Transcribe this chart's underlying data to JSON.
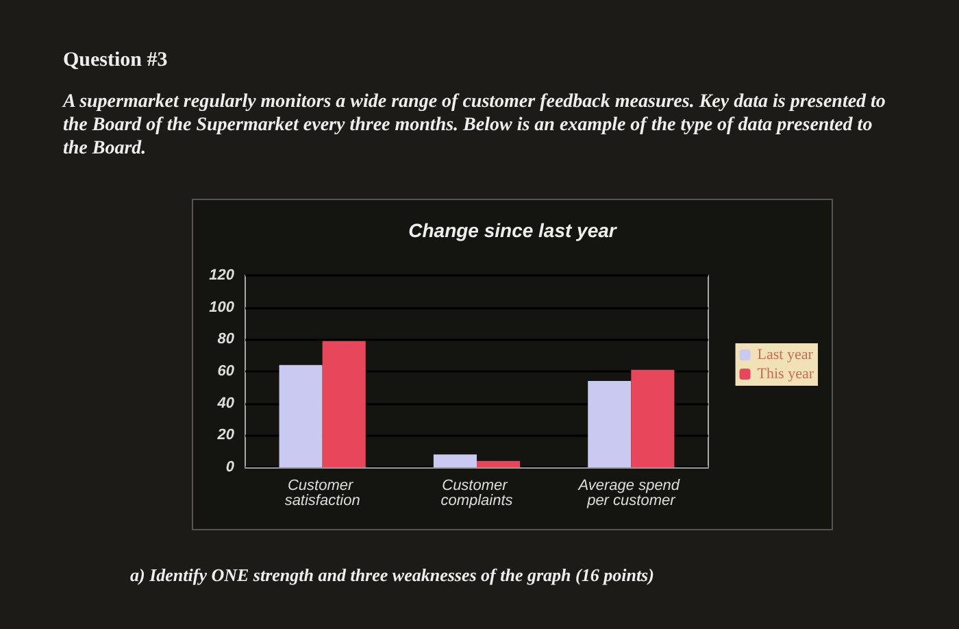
{
  "chart_data": {
    "type": "bar",
    "title": "Change since last year",
    "annotations": [
      "Question #3",
      "A supermarket regularly monitors a wide range of customer feedback measures. Key data is presented to the Board of the Supermarket every three months. Below is an example of the type of data presented to the Board.",
      "a) Identify ONE strength and three weaknesses of the graph (16 points)"
    ],
    "categories": [
      "Customer satisfaction",
      "Customer complaints",
      "Average spend per customer"
    ],
    "series": [
      {
        "name": "Last year",
        "color": "#c9c9f2",
        "values": [
          64,
          8,
          54
        ]
      },
      {
        "name": "This year",
        "color": "#e8475b",
        "values": [
          79,
          4,
          61
        ]
      }
    ],
    "ylim": [
      0,
      120
    ],
    "yticks": [
      0,
      20,
      40,
      60,
      80,
      100,
      120
    ],
    "grid": "y",
    "legend": "right"
  }
}
